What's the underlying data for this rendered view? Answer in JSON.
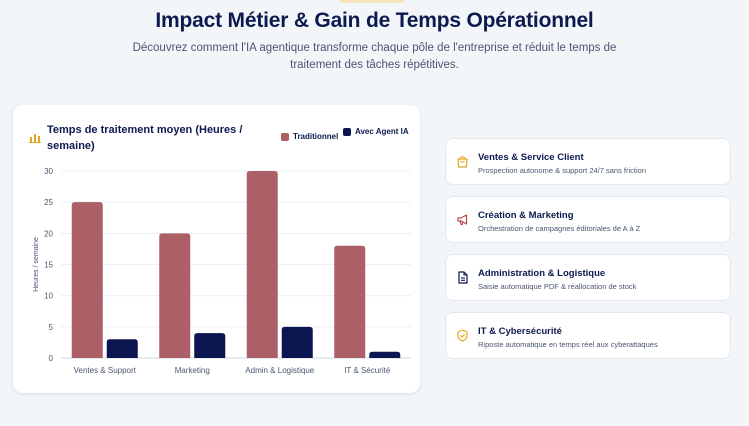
{
  "header": {
    "title": "Impact Métier & Gain de Temps Opérationnel",
    "subtitle": "Découvrez comment l'IA agentique transforme chaque pôle de l'entreprise et réduit le temps de traitement des tâches répétitives."
  },
  "chart_card": {
    "icon": "bar-chart-icon",
    "title": "Temps de traitement moyen (Heures / semaine)"
  },
  "chart_data": {
    "type": "bar",
    "title": "Temps de traitement moyen (Heures / semaine)",
    "categories": [
      "Ventes & Support",
      "Marketing",
      "Admin & Logistique",
      "IT & Sécurité"
    ],
    "series": [
      {
        "name": "Traditionnel",
        "values": [
          25,
          20,
          30,
          18
        ],
        "color": "#ac5f66"
      },
      {
        "name": "Avec Agent IA",
        "values": [
          3,
          4,
          5,
          1
        ],
        "color": "#0b1650"
      }
    ],
    "ylabel": "Heures / semaine",
    "xlabel": "",
    "ylim": [
      0,
      30
    ],
    "yticks": [
      0,
      5,
      10,
      15,
      20,
      25,
      30
    ],
    "grid": true,
    "legend_position": "top-right"
  },
  "categories_list": [
    {
      "icon": "shopping-bag-icon",
      "title": "Ventes & Service Client",
      "description": "Prospection autonome & support 24/7 sans friction"
    },
    {
      "icon": "megaphone-icon",
      "title": "Création & Marketing",
      "description": "Orchestration de campagnes éditoriales de A à Z"
    },
    {
      "icon": "document-icon",
      "title": "Administration & Logistique",
      "description": "Saisie automatique PDF & réallocation de stock"
    },
    {
      "icon": "shield-check-icon",
      "title": "IT & Cybersécurité",
      "description": "Riposte automatique en temps réel aux cyberattaques"
    }
  ],
  "colors": {
    "accent": "#e0a81f",
    "traditional": "#ac5f66",
    "agent": "#0b1650",
    "icon_red": "#c0464f"
  }
}
